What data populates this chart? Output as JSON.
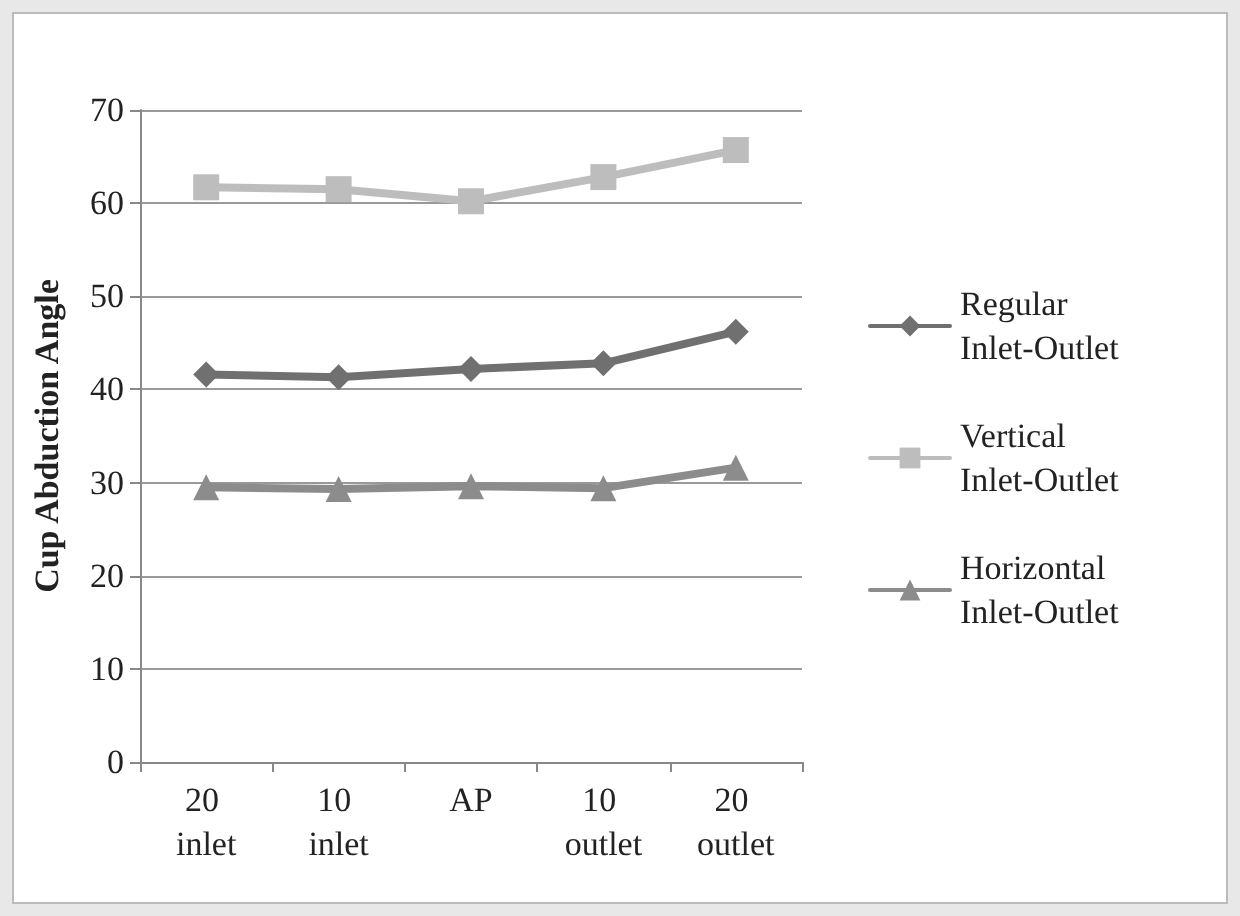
{
  "chart_data": {
    "type": "line",
    "ylabel": "Cup Abduction Angle",
    "categories": [
      "20 inlet",
      "10 inlet",
      "AP",
      "10 outlet",
      "20 outlet"
    ],
    "series": [
      {
        "name": "Regular Inlet-Outlet",
        "color": "#707070",
        "marker": "diamond",
        "values": [
          41.6,
          41.3,
          42.2,
          42.8,
          46.2
        ]
      },
      {
        "name": "Vertical Inlet-Outlet",
        "color": "#bdbdbd",
        "marker": "square",
        "values": [
          61.7,
          61.5,
          60.2,
          62.8,
          65.7
        ]
      },
      {
        "name": "Horizontal Inlet-Outlet",
        "color": "#8c8c8c",
        "marker": "triangle",
        "values": [
          29.5,
          29.3,
          29.6,
          29.4,
          31.6
        ]
      }
    ],
    "ylim": [
      0,
      70
    ],
    "yticks": [
      0,
      10,
      20,
      30,
      40,
      50,
      60,
      70
    ],
    "grid": "y",
    "legend": "right",
    "line_style": "solid"
  }
}
